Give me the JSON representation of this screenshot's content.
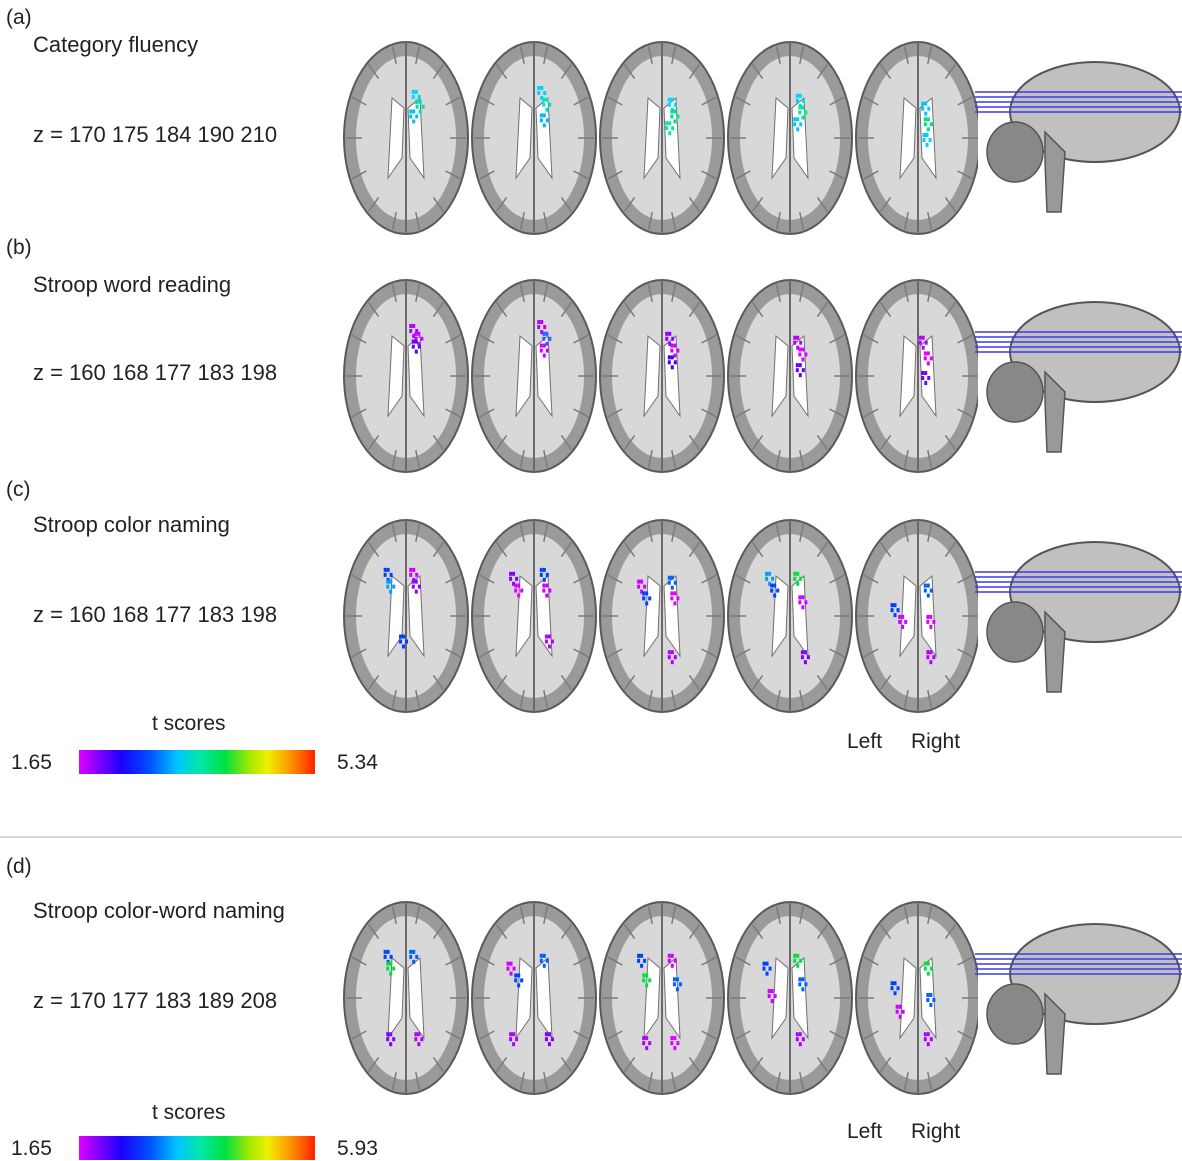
{
  "panels": [
    {
      "letter": "(a)",
      "title": "Category fluency",
      "z_label": "z = 170 175 184 190 210",
      "clusters": [
        [
          [
            0.6,
            0.28,
            "#00d4ff"
          ],
          [
            0.63,
            0.33,
            "#00e0a0"
          ],
          [
            0.58,
            0.38,
            "#00c0ff"
          ]
        ],
        [
          [
            0.58,
            0.26,
            "#00d0ff"
          ],
          [
            0.62,
            0.32,
            "#00e8c0"
          ],
          [
            0.6,
            0.4,
            "#00b8ff"
          ]
        ],
        [
          [
            0.6,
            0.32,
            "#00d8ff"
          ],
          [
            0.62,
            0.38,
            "#00e090"
          ],
          [
            0.58,
            0.44,
            "#00e8b0"
          ]
        ],
        [
          [
            0.6,
            0.3,
            "#00d4ff"
          ],
          [
            0.62,
            0.36,
            "#00e8a0"
          ],
          [
            0.58,
            0.42,
            "#00c8ff"
          ]
        ],
        [
          [
            0.58,
            0.34,
            "#00c8ff"
          ],
          [
            0.6,
            0.42,
            "#00e080"
          ],
          [
            0.59,
            0.5,
            "#00d0ff"
          ]
        ]
      ]
    },
    {
      "letter": "(b)",
      "title": "Stroop word reading",
      "z_label": "z = 160 168 177 183 198",
      "clusters": [
        [
          [
            0.58,
            0.26,
            "#b000ff"
          ],
          [
            0.62,
            0.3,
            "#d000ff"
          ],
          [
            0.6,
            0.34,
            "#6000ff"
          ]
        ],
        [
          [
            0.58,
            0.24,
            "#b000ff"
          ],
          [
            0.62,
            0.3,
            "#3060ff"
          ],
          [
            0.6,
            0.36,
            "#d000ff"
          ]
        ],
        [
          [
            0.58,
            0.3,
            "#9000ff"
          ],
          [
            0.62,
            0.36,
            "#d000ff"
          ],
          [
            0.6,
            0.42,
            "#4000ff"
          ]
        ],
        [
          [
            0.58,
            0.32,
            "#b000ff"
          ],
          [
            0.62,
            0.38,
            "#e000ff"
          ],
          [
            0.6,
            0.46,
            "#6000ff"
          ]
        ],
        [
          [
            0.56,
            0.32,
            "#b000ff"
          ],
          [
            0.6,
            0.4,
            "#e000ff"
          ],
          [
            0.58,
            0.5,
            "#7000ff"
          ]
        ]
      ]
    },
    {
      "letter": "(c)",
      "title": "Stroop color naming",
      "z_label": "z = 160 168 177 183 198",
      "clusters": [
        [
          [
            0.38,
            0.28,
            "#0040ff"
          ],
          [
            0.4,
            0.34,
            "#00a0ff"
          ],
          [
            0.58,
            0.28,
            "#d000ff"
          ],
          [
            0.6,
            0.34,
            "#9000ff"
          ],
          [
            0.5,
            0.62,
            "#0040ff"
          ]
        ],
        [
          [
            0.36,
            0.3,
            "#8000ff"
          ],
          [
            0.4,
            0.36,
            "#e000ff"
          ],
          [
            0.6,
            0.28,
            "#0040ff"
          ],
          [
            0.62,
            0.36,
            "#d000ff"
          ],
          [
            0.64,
            0.62,
            "#b000ff"
          ]
        ],
        [
          [
            0.36,
            0.34,
            "#d000ff"
          ],
          [
            0.4,
            0.4,
            "#0040ff"
          ],
          [
            0.6,
            0.32,
            "#0060ff"
          ],
          [
            0.62,
            0.4,
            "#e000ff"
          ],
          [
            0.6,
            0.7,
            "#b000ff"
          ]
        ],
        [
          [
            0.36,
            0.3,
            "#00a0ff"
          ],
          [
            0.4,
            0.36,
            "#0040ff"
          ],
          [
            0.58,
            0.3,
            "#00e040"
          ],
          [
            0.62,
            0.42,
            "#d000ff"
          ],
          [
            0.64,
            0.7,
            "#8000ff"
          ]
        ],
        [
          [
            0.34,
            0.46,
            "#0040ff"
          ],
          [
            0.4,
            0.52,
            "#d000ff"
          ],
          [
            0.6,
            0.36,
            "#0060ff"
          ],
          [
            0.62,
            0.52,
            "#e000ff"
          ],
          [
            0.62,
            0.7,
            "#b000ff"
          ]
        ]
      ]
    },
    {
      "letter": "(d)",
      "title": "Stroop color-word naming",
      "z_label": "z = 170 177 183 189 208",
      "clusters": [
        [
          [
            0.38,
            0.28,
            "#0040ff"
          ],
          [
            0.4,
            0.34,
            "#00e040"
          ],
          [
            0.58,
            0.28,
            "#0060ff"
          ],
          [
            0.4,
            0.7,
            "#8000ff"
          ],
          [
            0.62,
            0.7,
            "#b000ff"
          ]
        ],
        [
          [
            0.34,
            0.34,
            "#d000ff"
          ],
          [
            0.4,
            0.4,
            "#0040ff"
          ],
          [
            0.6,
            0.3,
            "#0060ff"
          ],
          [
            0.36,
            0.7,
            "#b000ff"
          ],
          [
            0.64,
            0.7,
            "#8000ff"
          ]
        ],
        [
          [
            0.36,
            0.3,
            "#0040ff"
          ],
          [
            0.4,
            0.4,
            "#00e040"
          ],
          [
            0.6,
            0.3,
            "#d000ff"
          ],
          [
            0.64,
            0.42,
            "#0060ff"
          ],
          [
            0.4,
            0.72,
            "#b000ff"
          ],
          [
            0.62,
            0.72,
            "#e000ff"
          ]
        ],
        [
          [
            0.34,
            0.34,
            "#0040ff"
          ],
          [
            0.38,
            0.48,
            "#d000ff"
          ],
          [
            0.58,
            0.3,
            "#00e040"
          ],
          [
            0.62,
            0.42,
            "#0060ff"
          ],
          [
            0.6,
            0.7,
            "#b000ff"
          ]
        ],
        [
          [
            0.34,
            0.44,
            "#0040ff"
          ],
          [
            0.38,
            0.56,
            "#d000ff"
          ],
          [
            0.6,
            0.34,
            "#00e040"
          ],
          [
            0.62,
            0.5,
            "#0060ff"
          ],
          [
            0.6,
            0.7,
            "#b000ff"
          ]
        ]
      ]
    }
  ],
  "scales": [
    {
      "label": "t scores",
      "min": "1.65",
      "max": "5.34"
    },
    {
      "label": "t scores",
      "min": "1.65",
      "max": "5.93"
    }
  ],
  "orientation": {
    "left": "Left",
    "right": "Right"
  },
  "colors": {
    "slice_line": "#3a3ae6",
    "brain_gray": "#b4b4b4",
    "divider": "#d6d6d6"
  }
}
